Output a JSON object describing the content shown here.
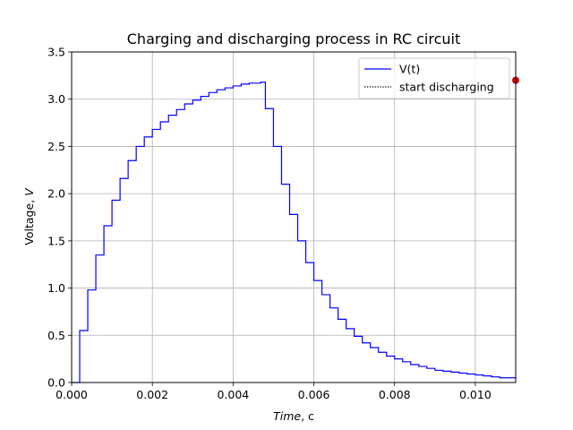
{
  "chart_data": {
    "type": "line",
    "title": "Charging and discharging process in RC circuit",
    "xlabel_main": "Time",
    "xlabel_unit": ", c",
    "ylabel_main": "Voltage, ",
    "ylabel_var": "V",
    "xlim": [
      0,
      0.011
    ],
    "ylim": [
      0,
      3.5
    ],
    "xticks": [
      0,
      0.002,
      0.004,
      0.006,
      0.008,
      0.01
    ],
    "xtick_labels": [
      "0.000",
      "0.002",
      "0.004",
      "0.006",
      "0.008",
      "0.010"
    ],
    "yticks": [
      0,
      0.5,
      1.0,
      1.5,
      2.0,
      2.5,
      3.0,
      3.5
    ],
    "ytick_labels": [
      "0.0",
      "0.5",
      "1.0",
      "1.5",
      "2.0",
      "2.5",
      "3.0",
      "3.5"
    ],
    "grid": true,
    "legend_position": "top-right",
    "series": [
      {
        "name": "V(t)",
        "color": "#0000ff",
        "x": [
          0,
          0.0002,
          0.0004,
          0.0006,
          0.0008,
          0.001,
          0.0012,
          0.0014,
          0.0016,
          0.0018,
          0.002,
          0.0022,
          0.0024,
          0.0026,
          0.0028,
          0.003,
          0.0032,
          0.0034,
          0.0036,
          0.0038,
          0.004,
          0.0042,
          0.0044,
          0.0046,
          0.00468,
          0.0048,
          0.005,
          0.0052,
          0.0054,
          0.0056,
          0.0058,
          0.006,
          0.0062,
          0.0064,
          0.0066,
          0.0068,
          0.007,
          0.0072,
          0.0074,
          0.0076,
          0.0078,
          0.008,
          0.0082,
          0.0084,
          0.0086,
          0.0088,
          0.009,
          0.0092,
          0.0094,
          0.0096,
          0.0098,
          0.01,
          0.0102,
          0.0104,
          0.0106,
          0.0108,
          0.011
        ],
        "y": [
          0,
          0.55,
          0.98,
          1.35,
          1.66,
          1.93,
          2.16,
          2.35,
          2.5,
          2.6,
          2.68,
          2.76,
          2.83,
          2.89,
          2.95,
          2.99,
          3.03,
          3.07,
          3.1,
          3.12,
          3.14,
          3.16,
          3.17,
          3.17,
          3.18,
          2.9,
          2.5,
          2.1,
          1.78,
          1.5,
          1.27,
          1.08,
          0.93,
          0.79,
          0.67,
          0.57,
          0.49,
          0.42,
          0.37,
          0.32,
          0.28,
          0.25,
          0.22,
          0.19,
          0.17,
          0.15,
          0.13,
          0.12,
          0.11,
          0.1,
          0.09,
          0.08,
          0.07,
          0.06,
          0.05,
          0.05,
          0.04
        ]
      }
    ],
    "marker": {
      "x": 0.011,
      "y": 3.2,
      "color": "#cc0000"
    },
    "legend_entries": [
      {
        "label": "V(t)",
        "style": "solid",
        "color": "#0000ff"
      },
      {
        "label": "start discharging",
        "style": "dotted",
        "color": "#000000"
      }
    ]
  }
}
